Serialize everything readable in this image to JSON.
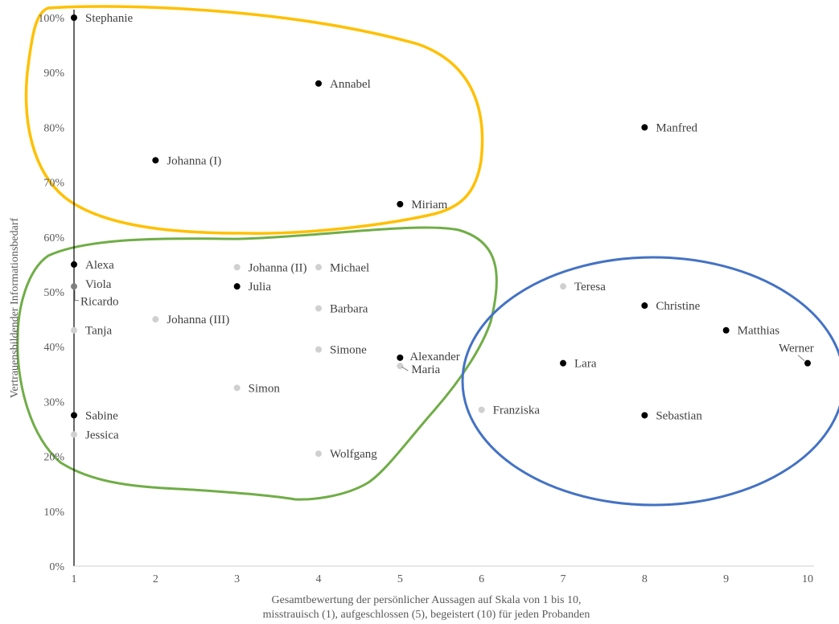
{
  "chart_data": {
    "type": "scatter",
    "title": "",
    "xlabel": [
      "Gesamtbewertung der persönlicher Aussagen auf Skala von 1 bis 10,",
      "misstrauisch (1), aufgeschlossen (5), begeistert (10) für jeden Probanden"
    ],
    "ylabel": "Vertrauensbildender Informationsbedarf",
    "xlim": [
      1,
      10
    ],
    "ylim": [
      0,
      1
    ],
    "x_ticks": [
      "1",
      "2",
      "3",
      "4",
      "5",
      "6",
      "7",
      "8",
      "9",
      "10"
    ],
    "y_ticks": [
      "0%",
      "10%",
      "20%",
      "30%",
      "40%",
      "50%",
      "60%",
      "70%",
      "80%",
      "90%",
      "100%"
    ],
    "grid": false,
    "legend": "none",
    "colors": {
      "point_dark": "#000000",
      "point_light": "#d0d0d0",
      "point_gray": "#7f7f7f",
      "cluster_yellow": "#ffc000",
      "cluster_green": "#70ad47",
      "cluster_blue": "#4472c4",
      "axis": "#000000",
      "text": "#404040"
    },
    "points": [
      {
        "name": "Stephanie",
        "x": 1,
        "y": 1.0,
        "shade": "dark"
      },
      {
        "name": "Annabel",
        "x": 4,
        "y": 0.88,
        "shade": "dark"
      },
      {
        "name": "Manfred",
        "x": 8,
        "y": 0.8,
        "shade": "dark"
      },
      {
        "name": "Johanna (I)",
        "x": 2,
        "y": 0.74,
        "shade": "dark"
      },
      {
        "name": "Miriam",
        "x": 5,
        "y": 0.66,
        "shade": "dark"
      },
      {
        "name": "Alexa",
        "x": 1,
        "y": 0.55,
        "shade": "dark"
      },
      {
        "name": "Johanna (II)",
        "x": 3,
        "y": 0.545,
        "shade": "light"
      },
      {
        "name": "Michael",
        "x": 4,
        "y": 0.545,
        "shade": "light"
      },
      {
        "name": "Viola",
        "x": 1,
        "y": 0.51,
        "shade": "gray"
      },
      {
        "name": "Ricardo",
        "x": 1,
        "y": 0.505,
        "shade": "light"
      },
      {
        "name": "Julia",
        "x": 3,
        "y": 0.51,
        "shade": "dark"
      },
      {
        "name": "Teresa",
        "x": 7,
        "y": 0.51,
        "shade": "light"
      },
      {
        "name": "Christine",
        "x": 8,
        "y": 0.475,
        "shade": "dark"
      },
      {
        "name": "Barbara",
        "x": 4,
        "y": 0.47,
        "shade": "light"
      },
      {
        "name": "Johanna (III)",
        "x": 2,
        "y": 0.45,
        "shade": "light"
      },
      {
        "name": "Tanja",
        "x": 1,
        "y": 0.43,
        "shade": "light"
      },
      {
        "name": "Matthias",
        "x": 9,
        "y": 0.43,
        "shade": "dark"
      },
      {
        "name": "Simone",
        "x": 4,
        "y": 0.395,
        "shade": "light"
      },
      {
        "name": "Alexander",
        "x": 5,
        "y": 0.38,
        "shade": "dark"
      },
      {
        "name": "Lara",
        "x": 7,
        "y": 0.37,
        "shade": "dark"
      },
      {
        "name": "Werner",
        "x": 10,
        "y": 0.37,
        "shade": "dark"
      },
      {
        "name": "Maria",
        "x": 5,
        "y": 0.365,
        "shade": "light"
      },
      {
        "name": "Simon",
        "x": 3,
        "y": 0.325,
        "shade": "light"
      },
      {
        "name": "Franziska",
        "x": 6,
        "y": 0.285,
        "shade": "light"
      },
      {
        "name": "Sabine",
        "x": 1,
        "y": 0.275,
        "shade": "dark"
      },
      {
        "name": "Sebastian",
        "x": 8,
        "y": 0.275,
        "shade": "dark"
      },
      {
        "name": "Jessica",
        "x": 1,
        "y": 0.24,
        "shade": "light"
      },
      {
        "name": "Wolfgang",
        "x": 4,
        "y": 0.205,
        "shade": "light"
      }
    ]
  }
}
